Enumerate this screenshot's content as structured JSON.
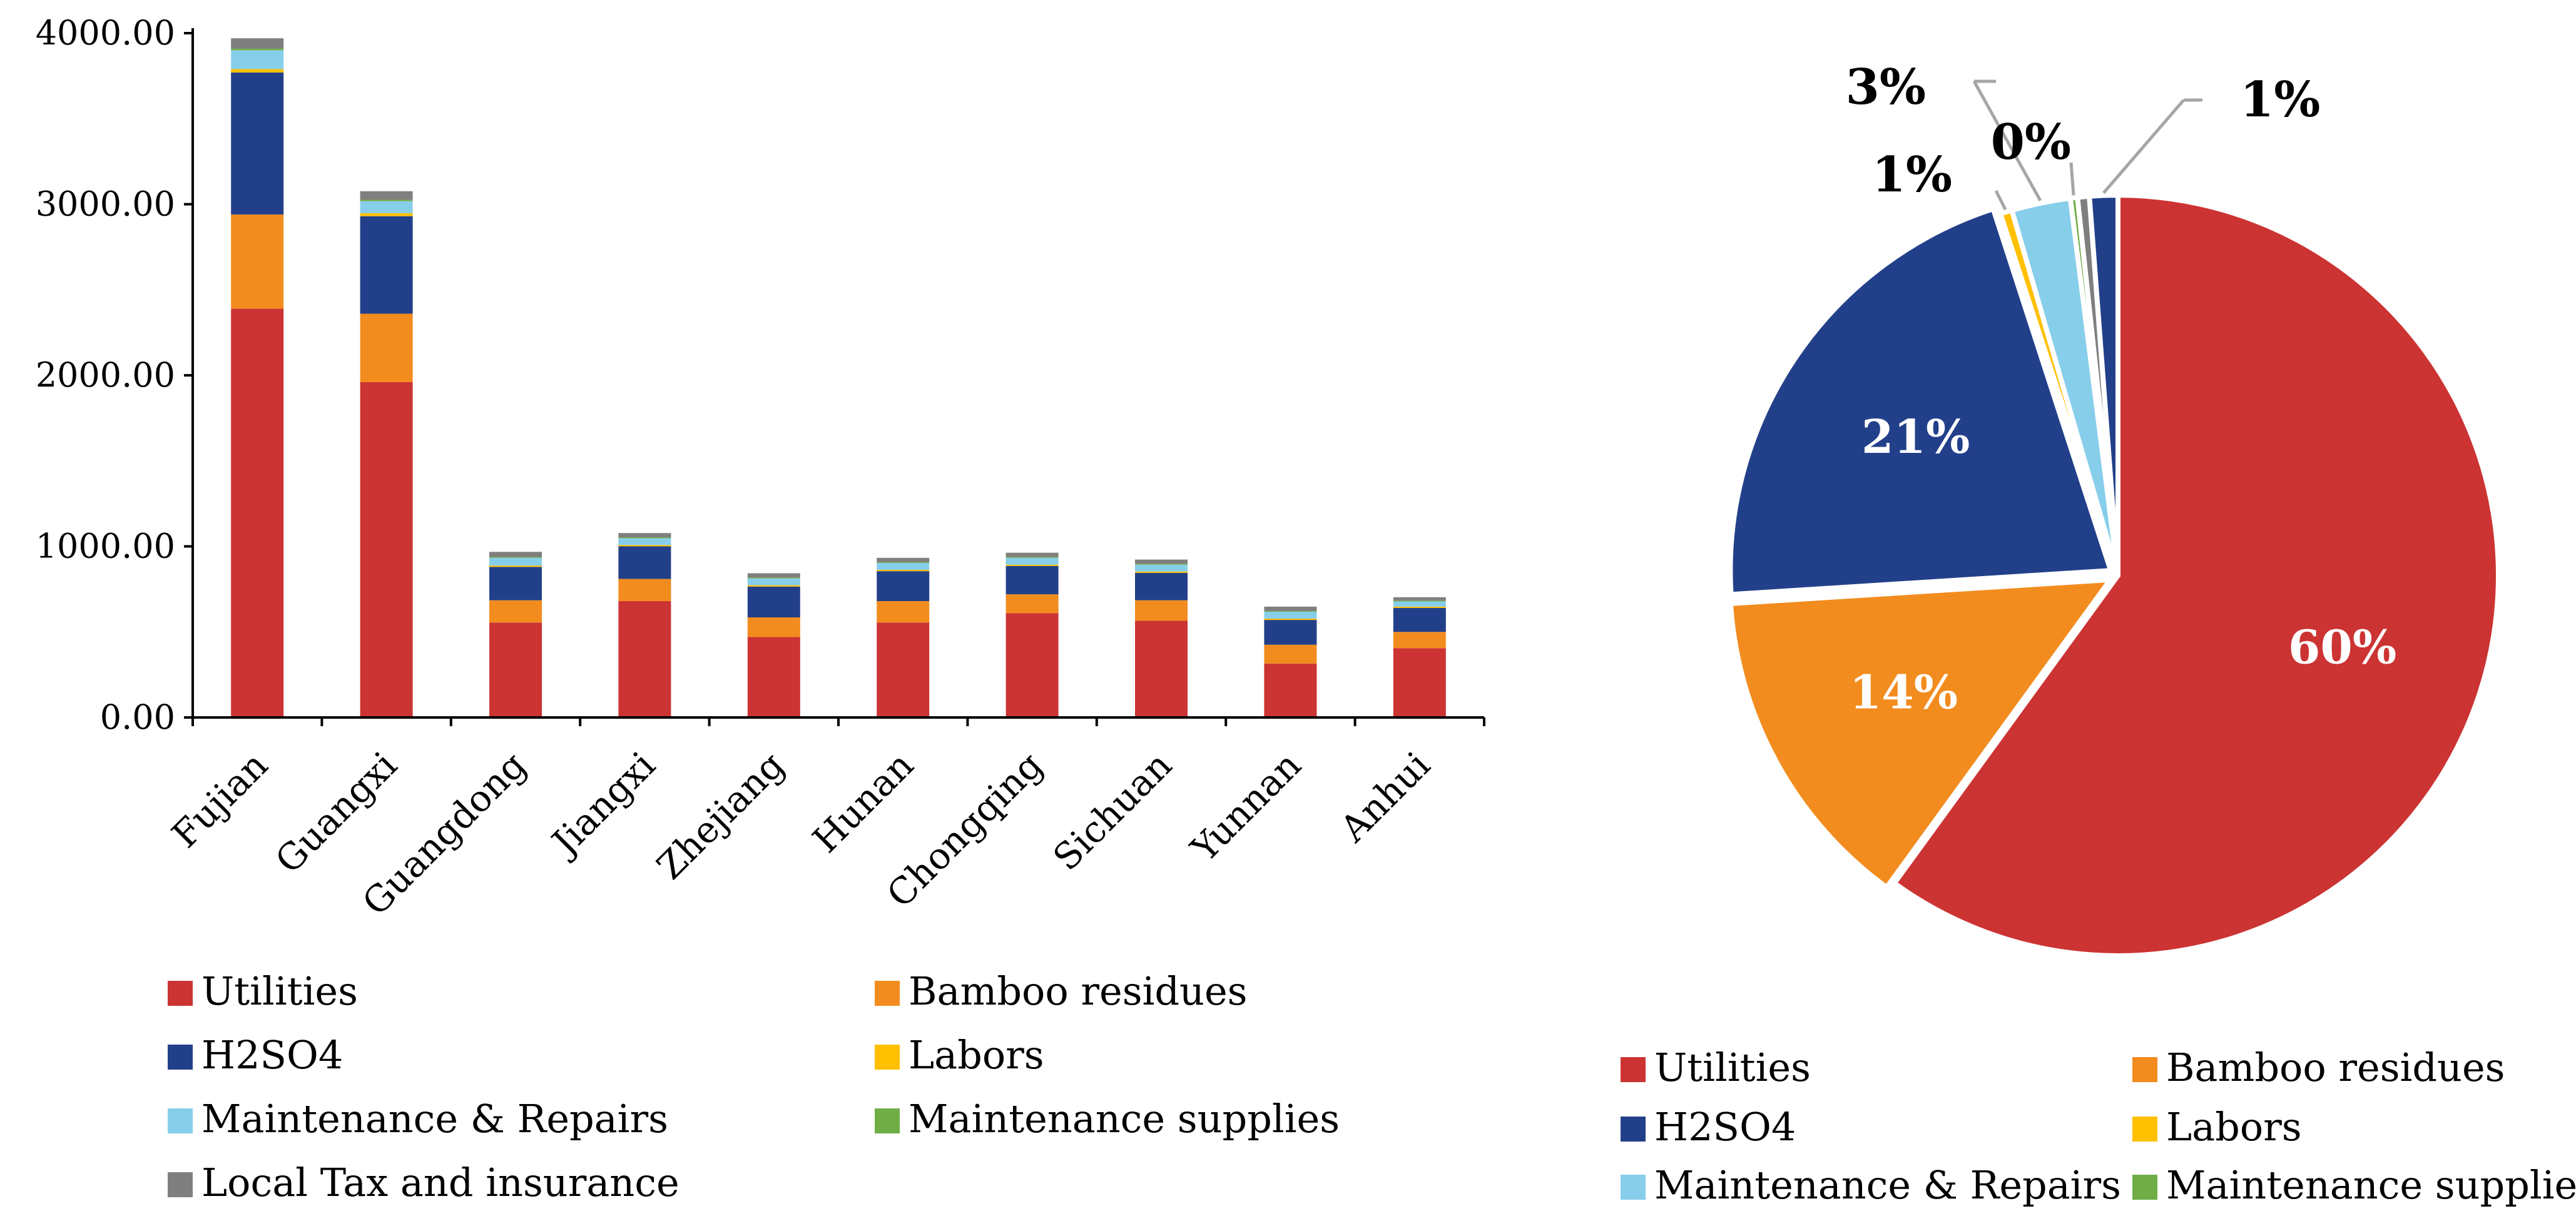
{
  "colors": {
    "Utilities": "#cc3333",
    "Bamboo residues": "#f28c1e",
    "H2SO4": "#22408a",
    "Labors": "#ffc000",
    "Maintenance & Repairs": "#87ceeb",
    "Maintenance supplies": "#70ad47",
    "Local Tax and insurance": "#7f7f7f"
  },
  "chart_data": [
    {
      "type": "bar",
      "stacked": true,
      "title": "",
      "xlabel": "",
      "ylabel": "",
      "ylim": [
        0,
        4000
      ],
      "yticks": [
        0,
        1000,
        2000,
        3000,
        4000
      ],
      "ytick_labels": [
        "0.00",
        "1000.00",
        "2000.00",
        "3000.00",
        "4000.00"
      ],
      "categories": [
        "Fujian",
        "Guangxi",
        "Guangdong",
        "Jiangxi",
        "Zhejiang",
        "Hunan",
        "Chongqing",
        "Sichuan",
        "Yunnan",
        "Anhui"
      ],
      "series": [
        {
          "name": "Utilities",
          "values": [
            2390,
            1960,
            555,
            680,
            470,
            555,
            610,
            565,
            315,
            405
          ]
        },
        {
          "name": "Bamboo residues",
          "values": [
            550,
            400,
            130,
            130,
            115,
            125,
            110,
            120,
            110,
            95
          ]
        },
        {
          "name": "H2SO4",
          "values": [
            830,
            570,
            195,
            190,
            180,
            175,
            165,
            160,
            145,
            140
          ]
        },
        {
          "name": "Labors",
          "values": [
            20,
            18,
            8,
            8,
            8,
            8,
            8,
            8,
            8,
            8
          ]
        },
        {
          "name": "Maintenance & Repairs",
          "values": [
            110,
            70,
            45,
            40,
            40,
            40,
            40,
            40,
            40,
            30
          ]
        },
        {
          "name": "Maintenance supplies",
          "values": [
            10,
            8,
            5,
            5,
            5,
            5,
            5,
            5,
            5,
            5
          ]
        },
        {
          "name": "Local Tax and insurance",
          "values": [
            60,
            50,
            30,
            25,
            25,
            25,
            25,
            25,
            25,
            20
          ]
        }
      ],
      "legend": [
        "Utilities",
        "Bamboo residues",
        "H2SO4",
        "Labors",
        "Maintenance & Repairs",
        "Maintenance supplies",
        "Local Tax and insurance"
      ],
      "legend_position": "bottom"
    },
    {
      "type": "pie",
      "title": "",
      "slices": [
        {
          "name": "Utilities",
          "value": 60,
          "label": "60%",
          "label_position": "inside"
        },
        {
          "name": "Bamboo residues",
          "value": 14,
          "label": "14%",
          "label_position": "inside"
        },
        {
          "name": "H2SO4",
          "value": 21,
          "label": "21%",
          "label_position": "inside"
        },
        {
          "name": "Labors",
          "value": 0.5,
          "label": "1%",
          "label_position": "outside"
        },
        {
          "name": "Maintenance & Repairs",
          "value": 2.5,
          "label": "3%",
          "label_position": "outside"
        },
        {
          "name": "Maintenance supplies",
          "value": 0.3,
          "label": "0%",
          "label_position": "outside"
        },
        {
          "name": "Local Tax and insurance",
          "value": 0.5,
          "label": "",
          "label_position": "none"
        },
        {
          "name": "H2SO4 (second portion)",
          "value": 1.2,
          "label": "1%",
          "label_position": "outside",
          "color_key": "H2SO4"
        }
      ],
      "legend": [
        "Utilities",
        "Bamboo residues",
        "H2SO4",
        "Labors",
        "Maintenance & Repairs",
        "Maintenance supplies"
      ],
      "legend_position": "bottom"
    }
  ]
}
